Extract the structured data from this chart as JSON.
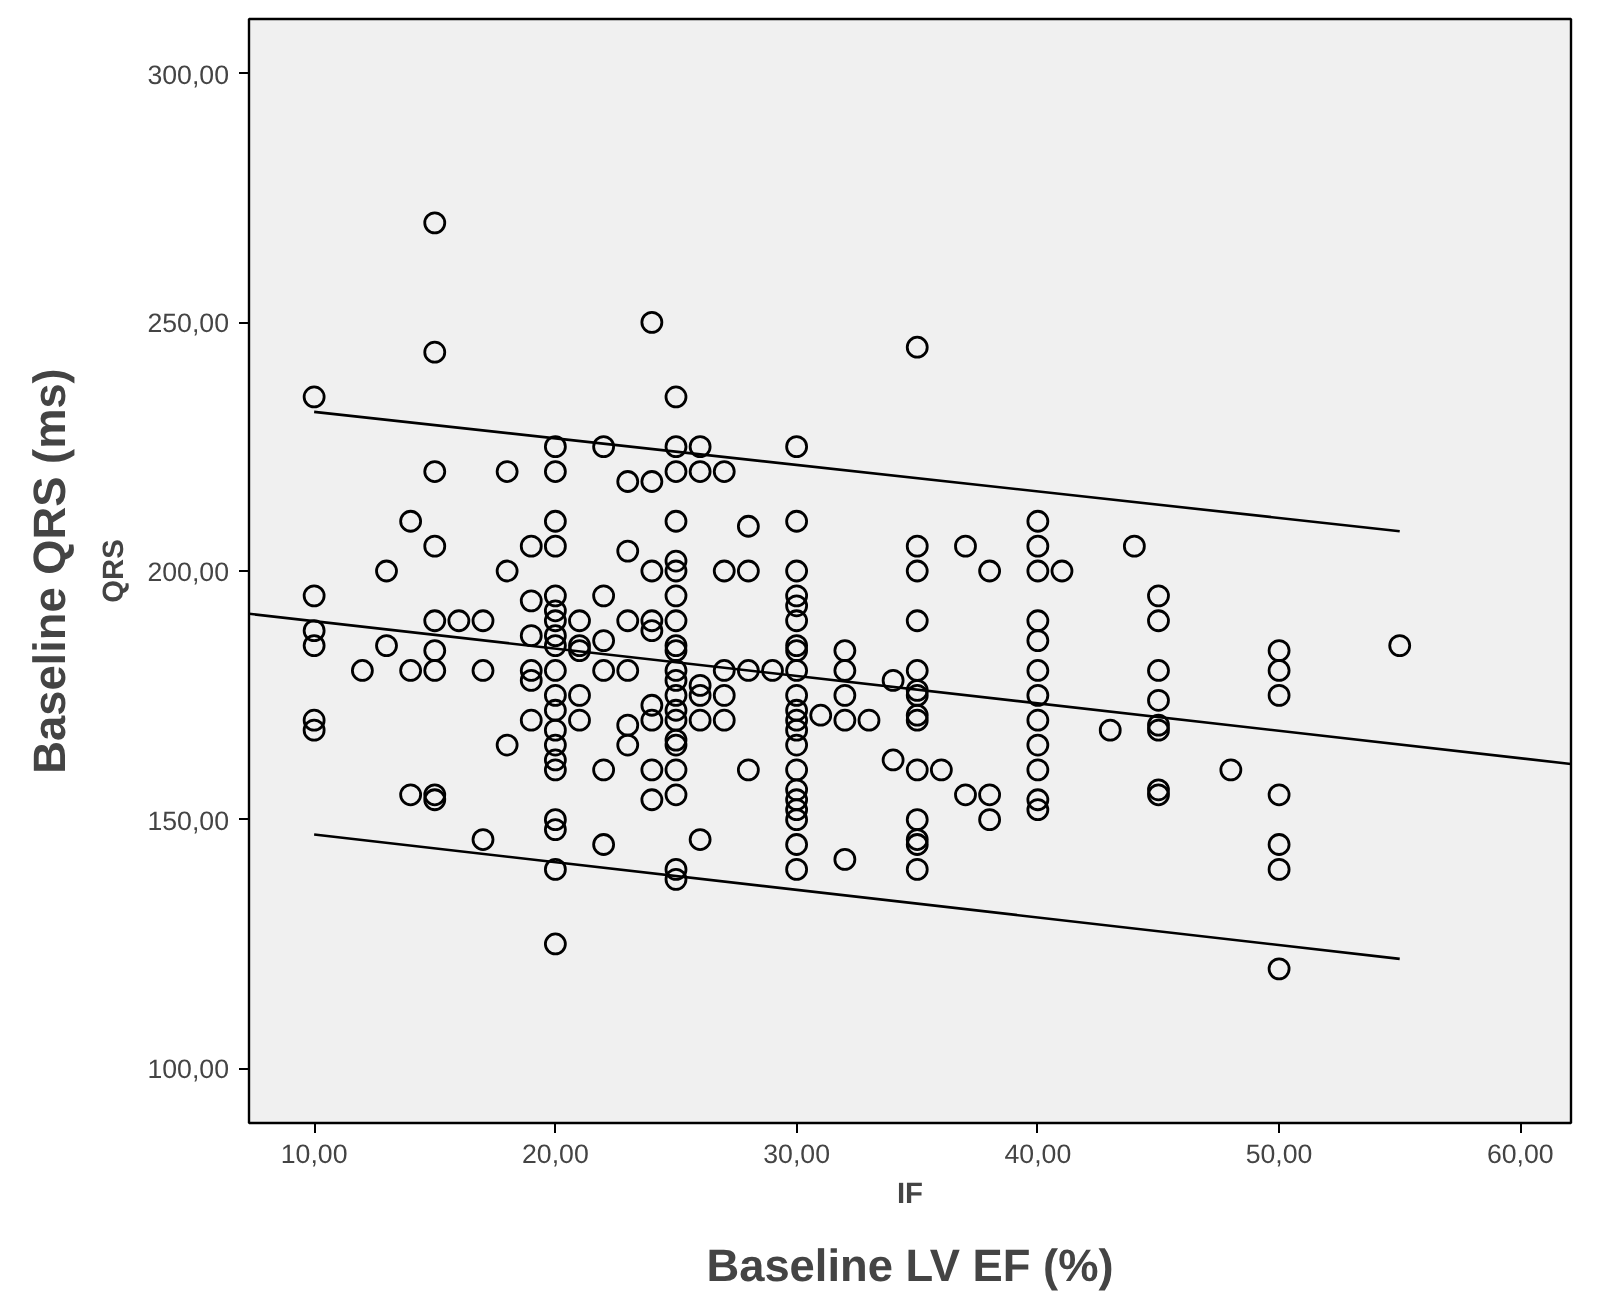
{
  "chart_data": {
    "type": "scatter",
    "xlabel": "IF",
    "ylabel": "QRS",
    "annotations": [
      "Baseline QRS (ms)",
      "Baseline LV EF (%)"
    ],
    "xlim": [
      7.3,
      62.1
    ],
    "ylim": [
      89,
      311
    ],
    "xticks": [
      {
        "value": 10,
        "label": "10,00"
      },
      {
        "value": 20,
        "label": "20,00"
      },
      {
        "value": 30,
        "label": "30,00"
      },
      {
        "value": 40,
        "label": "40,00"
      },
      {
        "value": 50,
        "label": "50,00"
      },
      {
        "value": 60,
        "label": "60,00"
      }
    ],
    "yticks": [
      {
        "value": 100,
        "label": "100,00"
      },
      {
        "value": 150,
        "label": "150,00"
      },
      {
        "value": 200,
        "label": "200,00"
      },
      {
        "value": 250,
        "label": "250,00"
      },
      {
        "value": 300,
        "label": "300,00"
      }
    ],
    "grid": false,
    "series": [
      {
        "marker": "circle",
        "color": "#000000",
        "x": [
          10,
          10,
          10,
          10,
          10,
          10,
          12,
          13,
          13,
          14,
          14,
          14,
          15,
          15,
          15,
          15,
          15,
          15,
          15,
          15,
          15,
          16,
          17,
          17,
          17,
          18,
          18,
          18,
          19,
          19,
          19,
          19,
          19,
          19,
          20,
          20,
          20,
          20,
          20,
          20,
          20,
          20,
          20,
          20,
          20,
          20,
          20,
          20,
          20,
          20,
          20,
          20,
          20,
          20,
          21,
          21,
          21,
          21,
          21,
          22,
          22,
          22,
          22,
          22,
          22,
          23,
          23,
          23,
          23,
          23,
          23,
          24,
          24,
          24,
          24,
          24,
          24,
          24,
          24,
          24,
          25,
          25,
          25,
          25,
          25,
          25,
          25,
          25,
          25,
          25,
          25,
          25,
          25,
          25,
          25,
          25,
          25,
          25,
          25,
          25,
          25,
          26,
          26,
          26,
          26,
          26,
          26,
          27,
          27,
          27,
          27,
          27,
          28,
          28,
          28,
          28,
          29,
          30,
          30,
          30,
          30,
          30,
          30,
          30,
          30,
          30,
          30,
          30,
          30,
          30,
          30,
          30,
          30,
          30,
          30,
          30,
          30,
          30,
          31,
          32,
          32,
          32,
          32,
          32,
          33,
          34,
          34,
          35,
          35,
          35,
          35,
          35,
          35,
          35,
          35,
          35,
          35,
          35,
          35,
          35,
          35,
          36,
          37,
          37,
          38,
          38,
          38,
          40,
          40,
          40,
          40,
          40,
          40,
          40,
          40,
          40,
          40,
          40,
          40,
          41,
          43,
          44,
          45,
          45,
          45,
          45,
          45,
          45,
          45,
          45,
          48,
          50,
          50,
          50,
          50,
          50,
          50,
          50,
          55
        ],
        "values": [
          235,
          195,
          188,
          185,
          170,
          168,
          180,
          200,
          185,
          210,
          180,
          155,
          270,
          244,
          220,
          205,
          190,
          184,
          180,
          155,
          154,
          190,
          190,
          180,
          146,
          220,
          200,
          165,
          205,
          194,
          187,
          180,
          178,
          170,
          225,
          220,
          210,
          205,
          195,
          192,
          190,
          187,
          185,
          180,
          175,
          172,
          168,
          165,
          162,
          160,
          150,
          148,
          140,
          125,
          190,
          185,
          184,
          175,
          170,
          225,
          195,
          186,
          180,
          160,
          145,
          218,
          204,
          190,
          180,
          169,
          165,
          250,
          218,
          200,
          190,
          188,
          173,
          170,
          160,
          154,
          235,
          225,
          220,
          210,
          202,
          200,
          195,
          190,
          185,
          184,
          180,
          178,
          175,
          172,
          170,
          166,
          165,
          160,
          155,
          140,
          138,
          225,
          220,
          177,
          175,
          170,
          146,
          220,
          200,
          180,
          175,
          170,
          209,
          200,
          180,
          160,
          180,
          225,
          210,
          200,
          195,
          193,
          190,
          185,
          184,
          180,
          175,
          172,
          170,
          168,
          165,
          160,
          156,
          154,
          152,
          150,
          145,
          140,
          171,
          184,
          180,
          175,
          170,
          142,
          170,
          178,
          162,
          245,
          205,
          200,
          190,
          180,
          176,
          175,
          171,
          170,
          160,
          150,
          146,
          145,
          140,
          160,
          205,
          155,
          200,
          155,
          150,
          210,
          205,
          200,
          190,
          186,
          180,
          175,
          170,
          165,
          160,
          154,
          152,
          200,
          168,
          205,
          195,
          190,
          180,
          174,
          169,
          168,
          156,
          155,
          160,
          184,
          180,
          175,
          155,
          145,
          140,
          120,
          185
        ]
      },
      {
        "type": "line",
        "color": "#000000",
        "x": [
          7.3,
          62.1
        ],
        "values": [
          191.4,
          161.2
        ]
      },
      {
        "type": "line",
        "color": "#000000",
        "x": [
          10,
          55
        ],
        "values": [
          232,
          208
        ]
      },
      {
        "type": "line",
        "color": "#000000",
        "x": [
          10,
          55
        ],
        "values": [
          147,
          122
        ]
      }
    ]
  }
}
